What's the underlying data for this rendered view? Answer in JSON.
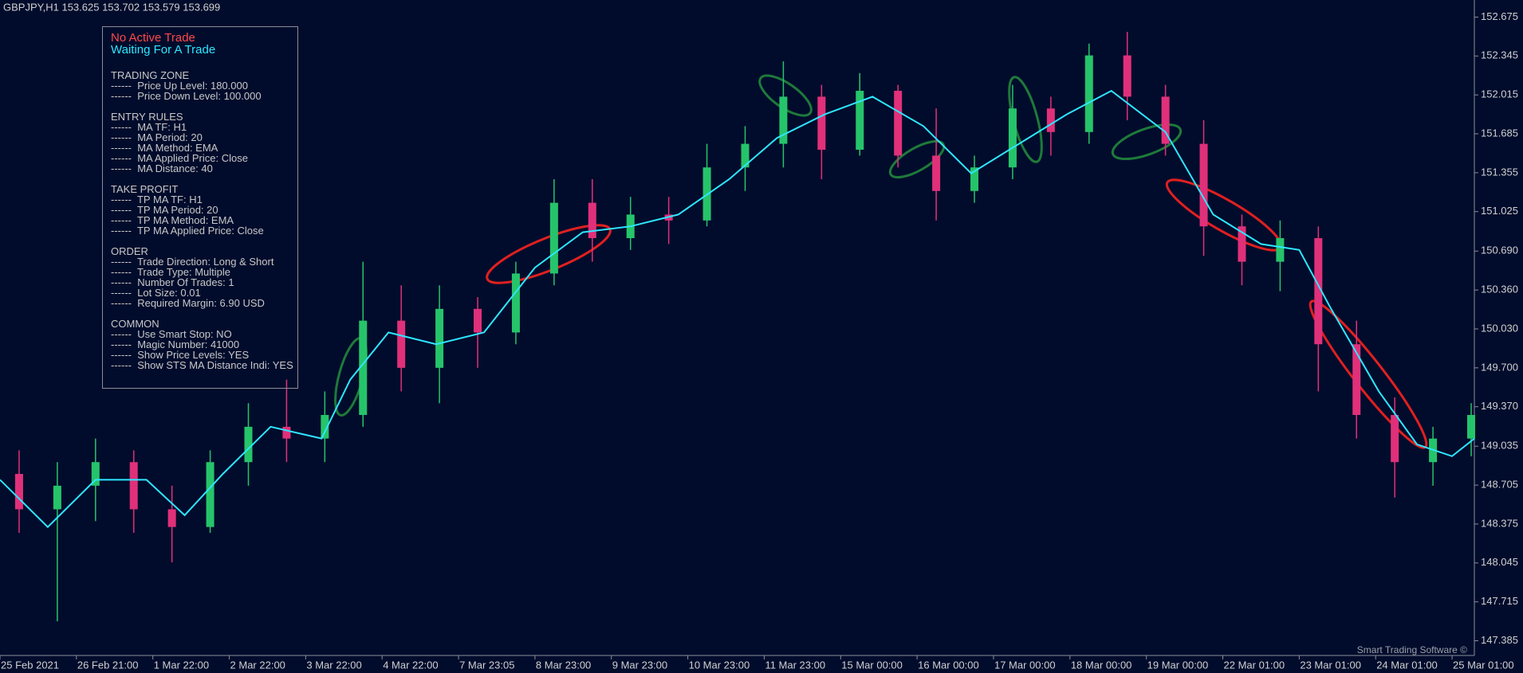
{
  "chart_data": {
    "type": "candlestick",
    "title": "GBPJPY,H1  153.625 153.702 153.579 153.699",
    "watermark": "Smart Trading Software ©",
    "xlim": [
      0,
      463
    ],
    "ylim": [
      147.26,
      152.82
    ],
    "xticks": [
      {
        "value": 0,
        "label": "25 Feb 2021"
      },
      {
        "value": 24,
        "label": "26 Feb 21:00"
      },
      {
        "value": 48,
        "label": "1 Mar 22:00"
      },
      {
        "value": 72,
        "label": "2 Mar 22:00"
      },
      {
        "value": 96,
        "label": "3 Mar 22:00"
      },
      {
        "value": 120,
        "label": "4 Mar 22:00"
      },
      {
        "value": 144,
        "label": "7 Mar 23:05"
      },
      {
        "value": 168,
        "label": "8 Mar 23:00"
      },
      {
        "value": 192,
        "label": "9 Mar 23:00"
      },
      {
        "value": 216,
        "label": "10 Mar 23:00"
      },
      {
        "value": 240,
        "label": "11 Mar 23:00"
      },
      {
        "value": 264,
        "label": "15 Mar 00:00"
      },
      {
        "value": 288,
        "label": "16 Mar 00:00"
      },
      {
        "value": 312,
        "label": "17 Mar 00:00"
      },
      {
        "value": 336,
        "label": "18 Mar 00:00"
      },
      {
        "value": 360,
        "label": "19 Mar 00:00"
      },
      {
        "value": 384,
        "label": "22 Mar 01:00"
      },
      {
        "value": 408,
        "label": "23 Mar 01:00"
      },
      {
        "value": 432,
        "label": "24 Mar 01:00"
      },
      {
        "value": 456,
        "label": "25 Mar 01:00"
      }
    ],
    "yticks": [
      {
        "value": 147.385,
        "label": "147.385"
      },
      {
        "value": 147.715,
        "label": "147.715"
      },
      {
        "value": 148.045,
        "label": "148.045"
      },
      {
        "value": 148.375,
        "label": "148.375"
      },
      {
        "value": 148.705,
        "label": "148.705"
      },
      {
        "value": 149.035,
        "label": "149.035"
      },
      {
        "value": 149.37,
        "label": "149.370"
      },
      {
        "value": 149.7,
        "label": "149.700"
      },
      {
        "value": 150.03,
        "label": "150.030"
      },
      {
        "value": 150.36,
        "label": "150.360"
      },
      {
        "value": 150.69,
        "label": "150.690"
      },
      {
        "value": 151.025,
        "label": "151.025"
      },
      {
        "value": 151.355,
        "label": "151.355"
      },
      {
        "value": 151.685,
        "label": "151.685"
      },
      {
        "value": 152.015,
        "label": "152.015"
      },
      {
        "value": 152.345,
        "label": "152.345"
      },
      {
        "value": 152.675,
        "label": "152.675"
      }
    ],
    "bull_color": "#26c46a",
    "bear_color": "#e0307a",
    "candles": {
      "x": [
        6,
        18,
        30,
        42,
        54,
        66,
        78,
        90,
        102,
        114,
        126,
        138,
        150,
        162,
        174,
        186,
        198,
        210,
        222,
        234,
        246,
        258,
        270,
        282,
        294,
        306,
        318,
        330,
        342,
        354,
        366,
        378,
        390,
        402,
        414,
        426,
        438,
        450,
        462
      ],
      "open": [
        148.8,
        148.5,
        148.7,
        148.9,
        148.5,
        148.35,
        148.9,
        149.2,
        149.1,
        149.3,
        150.1,
        149.7,
        150.2,
        150.0,
        150.5,
        151.1,
        150.8,
        151.0,
        150.95,
        151.4,
        151.6,
        152.0,
        151.55,
        152.05,
        151.5,
        151.2,
        151.4,
        151.9,
        151.7,
        152.35,
        152.0,
        151.6,
        150.9,
        150.6,
        150.8,
        149.9,
        149.3,
        148.9,
        149.1
      ],
      "high": [
        149.0,
        148.9,
        149.1,
        149.0,
        148.7,
        149.0,
        149.4,
        149.6,
        149.5,
        150.6,
        150.4,
        150.4,
        150.3,
        150.6,
        151.3,
        151.3,
        151.15,
        151.15,
        151.6,
        151.75,
        152.3,
        152.1,
        152.2,
        152.1,
        151.9,
        151.5,
        152.1,
        152.0,
        152.45,
        152.55,
        152.1,
        151.8,
        151.0,
        150.95,
        150.9,
        150.1,
        149.45,
        149.2,
        149.4
      ],
      "low": [
        148.3,
        147.55,
        148.4,
        148.3,
        148.05,
        148.3,
        148.7,
        148.9,
        148.9,
        149.2,
        149.5,
        149.4,
        149.7,
        149.9,
        150.4,
        150.6,
        150.7,
        150.75,
        150.9,
        151.2,
        151.4,
        151.3,
        151.5,
        151.4,
        150.95,
        151.1,
        151.3,
        151.5,
        151.6,
        151.8,
        151.5,
        150.65,
        150.4,
        150.35,
        149.5,
        149.1,
        148.6,
        148.7,
        148.95
      ],
      "close": [
        148.5,
        148.7,
        148.9,
        148.5,
        148.35,
        148.9,
        149.2,
        149.1,
        149.3,
        150.1,
        149.7,
        150.2,
        150.0,
        150.5,
        151.1,
        150.8,
        151.0,
        150.95,
        151.4,
        151.6,
        152.0,
        151.55,
        152.05,
        151.5,
        151.2,
        151.4,
        151.9,
        151.7,
        152.35,
        152.0,
        151.6,
        150.9,
        150.6,
        150.8,
        149.9,
        149.3,
        148.9,
        149.1,
        149.3
      ]
    },
    "ma": {
      "color": "#2ee6ff",
      "x": [
        0,
        15,
        30,
        46,
        58,
        70,
        85,
        101,
        110,
        122,
        137,
        152,
        168,
        183,
        198,
        213,
        229,
        244,
        259,
        274,
        290,
        305,
        320,
        335,
        349,
        366,
        381,
        396,
        408,
        418,
        433,
        445,
        456,
        463
      ],
      "values": [
        148.75,
        148.35,
        148.75,
        148.75,
        148.45,
        148.8,
        149.2,
        149.1,
        149.6,
        150.0,
        149.9,
        150.0,
        150.55,
        150.85,
        150.9,
        151.0,
        151.3,
        151.65,
        151.85,
        152.0,
        151.75,
        151.35,
        151.6,
        151.85,
        152.05,
        151.7,
        151.0,
        150.75,
        150.7,
        150.2,
        149.5,
        149.05,
        148.95,
        149.1
      ]
    }
  },
  "panel": {
    "status": "No Active Trade",
    "state": "Waiting For A Trade",
    "sections": [
      {
        "title": "TRADING ZONE",
        "items": [
          "------  Price Up Level: 180.000",
          "------  Price Down Level: 100.000"
        ]
      },
      {
        "title": "ENTRY RULES",
        "items": [
          "------  MA TF: H1",
          "------  MA Period: 20",
          "------  MA Method: EMA",
          "------  MA Applied Price: Close",
          "------  MA Distance: 40"
        ]
      },
      {
        "title": "TAKE PROFIT",
        "items": [
          "------  TP MA TF: H1",
          "------  TP MA Period: 20",
          "------  TP MA Method: EMA",
          "------  TP MA Applied Price: Close"
        ]
      },
      {
        "title": "ORDER",
        "items": [
          "------  Trade Direction: Long & Short",
          "------  Trade Type: Multiple",
          "------  Number Of Trades: 1",
          "------  Lot Size: 0.01",
          "------  Required Margin: 6.90 USD"
        ]
      },
      {
        "title": "COMMON",
        "items": [
          "------  Use Smart Stop: NO",
          "------  Magic Number: 41000",
          "------  Show Price Levels: YES",
          "------  Show STS MA Distance Indi: YES"
        ]
      }
    ]
  }
}
